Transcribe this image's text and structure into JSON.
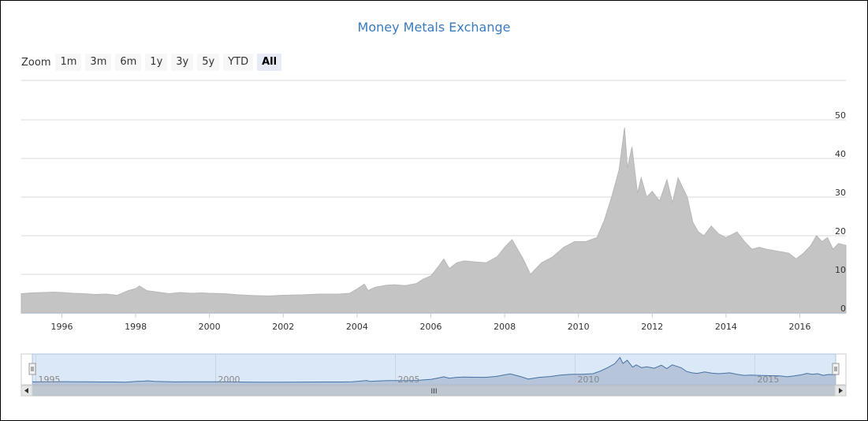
{
  "title": "Money Metals Exchange",
  "zoom": {
    "label": "Zoom",
    "buttons": [
      "1m",
      "3m",
      "6m",
      "1y",
      "3y",
      "5y",
      "YTD",
      "All"
    ],
    "active": "All"
  },
  "colors": {
    "area": "#c4c4c4",
    "grid": "#d8d8d8",
    "title": "#3a7bbf",
    "navigator_fill": "#dbe8f7",
    "navigator_line": "#4572a7",
    "navigator_area": "#a9bad0"
  },
  "chart_data": {
    "type": "area",
    "title": "Money Metals Exchange",
    "xlabel": "",
    "ylabel": "",
    "ylim": [
      0,
      50
    ],
    "yticks": [
      0,
      10,
      20,
      30,
      40,
      50
    ],
    "xlim": [
      1994.9,
      2017.25
    ],
    "xticks": [
      "1996",
      "1998",
      "2000",
      "2002",
      "2004",
      "2006",
      "2008",
      "2010",
      "2012",
      "2014",
      "2016"
    ],
    "grid": true,
    "legend": "none",
    "series": [
      {
        "x": [
          1994.9,
          1995.2,
          1995.5,
          1995.8,
          1996.0,
          1996.3,
          1996.6,
          1996.9,
          1997.2,
          1997.5,
          1997.8,
          1998.0,
          1998.1,
          1998.3,
          1998.6,
          1998.9,
          1999.2,
          1999.5,
          1999.8,
          2000.0,
          2000.4,
          2000.8,
          2001.2,
          2001.6,
          2002.0,
          2002.5,
          2003.0,
          2003.5,
          2003.8,
          2004.0,
          2004.2,
          2004.3,
          2004.5,
          2004.8,
          2005.0,
          2005.3,
          2005.6,
          2005.8,
          2006.0,
          2006.2,
          2006.35,
          2006.5,
          2006.7,
          2006.9,
          2007.2,
          2007.5,
          2007.8,
          2008.0,
          2008.2,
          2008.5,
          2008.7,
          2008.85,
          2009.0,
          2009.3,
          2009.6,
          2009.9,
          2010.2,
          2010.5,
          2010.7,
          2010.9,
          2011.1,
          2011.25,
          2011.33,
          2011.45,
          2011.6,
          2011.7,
          2011.85,
          2012.0,
          2012.2,
          2012.4,
          2012.55,
          2012.7,
          2012.8,
          2012.95,
          2013.1,
          2013.25,
          2013.4,
          2013.6,
          2013.8,
          2014.0,
          2014.3,
          2014.5,
          2014.7,
          2014.9,
          2015.1,
          2015.4,
          2015.7,
          2015.9,
          2016.1,
          2016.3,
          2016.45,
          2016.6,
          2016.75,
          2016.9,
          2017.05,
          2017.25
        ],
        "y": [
          5.0,
          5.2,
          5.3,
          5.4,
          5.3,
          5.1,
          5.0,
          4.8,
          4.9,
          4.6,
          5.8,
          6.3,
          7.0,
          5.8,
          5.4,
          5.0,
          5.3,
          5.1,
          5.2,
          5.1,
          5.0,
          4.7,
          4.5,
          4.4,
          4.6,
          4.7,
          4.9,
          4.9,
          5.1,
          6.2,
          7.5,
          5.8,
          6.7,
          7.2,
          7.3,
          7.1,
          7.6,
          8.8,
          9.6,
          12.0,
          14.0,
          11.5,
          13.0,
          13.5,
          13.2,
          13.0,
          14.6,
          17.0,
          19.0,
          14.0,
          10.0,
          11.5,
          13.0,
          14.5,
          17.0,
          18.5,
          18.5,
          19.5,
          24.0,
          30.0,
          37.0,
          48.0,
          37.5,
          43.0,
          31.0,
          35.0,
          30.0,
          31.5,
          29.0,
          34.5,
          28.5,
          35.0,
          33.0,
          30.0,
          23.5,
          21.0,
          20.0,
          22.5,
          20.5,
          19.5,
          21.0,
          18.5,
          16.5,
          17.0,
          16.5,
          16.0,
          15.5,
          14.0,
          15.5,
          17.5,
          20.0,
          18.5,
          19.5,
          16.5,
          18.0,
          17.5
        ]
      }
    ],
    "navigator": {
      "xticks": [
        "1995",
        "2000",
        "2005",
        "2010",
        "2015"
      ],
      "scrollbar_grip": "III"
    }
  }
}
